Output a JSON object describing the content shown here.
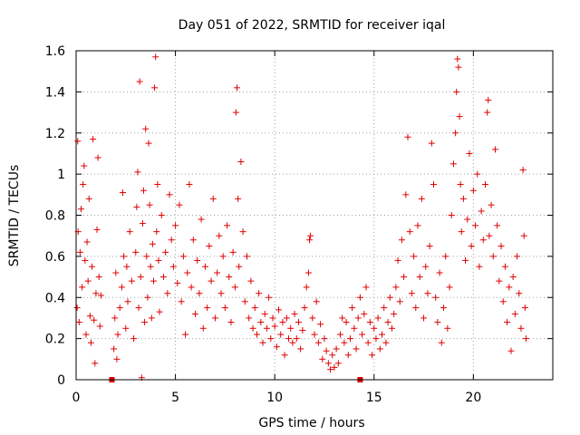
{
  "chart_data": {
    "type": "scatter",
    "title": "Day 051 of 2022, SRMTID for receiver iqal",
    "xlabel": "GPS time / hours",
    "ylabel": "SRMTID / TECUs",
    "xlim": [
      0,
      24
    ],
    "ylim": [
      0,
      1.6
    ],
    "xticks": [
      0,
      5,
      10,
      15,
      20
    ],
    "yticks": [
      0,
      0.2,
      0.4,
      0.6,
      0.8,
      1,
      1.2,
      1.4,
      1.6
    ],
    "xtick_labels": [
      "0",
      "5",
      "10",
      "15",
      "20"
    ],
    "ytick_labels": [
      "0",
      "0.2",
      "0.4",
      "0.6",
      "0.8",
      "1",
      "1.2",
      "1.4",
      "1.6"
    ],
    "grid": true,
    "marker": "+",
    "color": "#e00000",
    "square_markers": [
      {
        "x": 1.8,
        "y": 0
      },
      {
        "x": 14.3,
        "y": 0
      }
    ],
    "series": [
      {
        "name": "SRMTID",
        "points": [
          [
            0.05,
            0.35
          ],
          [
            0.08,
            1.16
          ],
          [
            0.1,
            0.72
          ],
          [
            0.15,
            0.28
          ],
          [
            0.2,
            0.62
          ],
          [
            0.25,
            0.83
          ],
          [
            0.3,
            0.45
          ],
          [
            0.35,
            0.95
          ],
          [
            0.4,
            1.04
          ],
          [
            0.45,
            0.58
          ],
          [
            0.5,
            0.22
          ],
          [
            0.55,
            0.67
          ],
          [
            0.6,
            0.48
          ],
          [
            0.65,
            0.88
          ],
          [
            0.7,
            0.31
          ],
          [
            0.75,
            0.18
          ],
          [
            0.8,
            0.55
          ],
          [
            0.85,
            1.17
          ],
          [
            0.9,
            0.29
          ],
          [
            0.95,
            0.08
          ],
          [
            1.0,
            0.42
          ],
          [
            1.05,
            0.73
          ],
          [
            1.1,
            1.08
          ],
          [
            1.15,
            0.5
          ],
          [
            1.2,
            0.26
          ],
          [
            1.25,
            0.41
          ],
          [
            1.9,
            0.15
          ],
          [
            1.95,
            0.3
          ],
          [
            2.0,
            0.52
          ],
          [
            2.05,
            0.1
          ],
          [
            2.1,
            0.22
          ],
          [
            2.2,
            0.35
          ],
          [
            2.3,
            0.45
          ],
          [
            2.35,
            0.91
          ],
          [
            2.4,
            0.6
          ],
          [
            2.5,
            0.25
          ],
          [
            2.55,
            0.55
          ],
          [
            2.6,
            0.38
          ],
          [
            2.7,
            0.72
          ],
          [
            2.8,
            0.48
          ],
          [
            2.9,
            0.2
          ],
          [
            3.0,
            0.62
          ],
          [
            3.05,
            0.84
          ],
          [
            3.1,
            1.01
          ],
          [
            3.15,
            0.35
          ],
          [
            3.2,
            1.45
          ],
          [
            3.25,
            0.5
          ],
          [
            3.3,
            0.01
          ],
          [
            3.35,
            0.76
          ],
          [
            3.4,
            0.92
          ],
          [
            3.45,
            0.28
          ],
          [
            3.5,
            1.22
          ],
          [
            3.55,
            0.6
          ],
          [
            3.6,
            0.4
          ],
          [
            3.65,
            1.15
          ],
          [
            3.7,
            0.85
          ],
          [
            3.75,
            0.55
          ],
          [
            3.8,
            0.3
          ],
          [
            3.85,
            0.66
          ],
          [
            3.9,
            0.48
          ],
          [
            3.95,
            1.42
          ],
          [
            4.0,
            1.57
          ],
          [
            4.05,
            0.72
          ],
          [
            4.1,
            0.95
          ],
          [
            4.15,
            0.58
          ],
          [
            4.2,
            0.33
          ],
          [
            4.3,
            0.8
          ],
          [
            4.4,
            0.5
          ],
          [
            4.5,
            0.62
          ],
          [
            4.6,
            0.42
          ],
          [
            4.7,
            0.9
          ],
          [
            4.8,
            0.68
          ],
          [
            4.9,
            0.55
          ],
          [
            5.0,
            0.75
          ],
          [
            5.1,
            0.47
          ],
          [
            5.2,
            0.85
          ],
          [
            5.3,
            0.38
          ],
          [
            5.4,
            0.6
          ],
          [
            5.5,
            0.22
          ],
          [
            5.6,
            0.52
          ],
          [
            5.7,
            0.95
          ],
          [
            5.8,
            0.45
          ],
          [
            5.9,
            0.68
          ],
          [
            6.0,
            0.32
          ],
          [
            6.1,
            0.58
          ],
          [
            6.2,
            0.42
          ],
          [
            6.3,
            0.78
          ],
          [
            6.4,
            0.25
          ],
          [
            6.5,
            0.55
          ],
          [
            6.6,
            0.35
          ],
          [
            6.7,
            0.65
          ],
          [
            6.8,
            0.48
          ],
          [
            6.9,
            0.88
          ],
          [
            7.0,
            0.3
          ],
          [
            7.1,
            0.52
          ],
          [
            7.2,
            0.7
          ],
          [
            7.3,
            0.42
          ],
          [
            7.4,
            0.6
          ],
          [
            7.5,
            0.35
          ],
          [
            7.6,
            0.75
          ],
          [
            7.7,
            0.5
          ],
          [
            7.8,
            0.28
          ],
          [
            7.9,
            0.62
          ],
          [
            8.0,
            0.45
          ],
          [
            8.05,
            1.3
          ],
          [
            8.1,
            1.42
          ],
          [
            8.15,
            0.88
          ],
          [
            8.2,
            0.55
          ],
          [
            8.3,
            1.06
          ],
          [
            8.4,
            0.72
          ],
          [
            8.5,
            0.38
          ],
          [
            8.6,
            0.6
          ],
          [
            8.7,
            0.3
          ],
          [
            8.8,
            0.48
          ],
          [
            8.9,
            0.25
          ],
          [
            9.0,
            0.35
          ],
          [
            9.1,
            0.22
          ],
          [
            9.2,
            0.42
          ],
          [
            9.3,
            0.28
          ],
          [
            9.4,
            0.18
          ],
          [
            9.5,
            0.32
          ],
          [
            9.6,
            0.25
          ],
          [
            9.7,
            0.4
          ],
          [
            9.8,
            0.2
          ],
          [
            9.9,
            0.3
          ],
          [
            10.0,
            0.26
          ],
          [
            10.1,
            0.16
          ],
          [
            10.2,
            0.34
          ],
          [
            10.3,
            0.22
          ],
          [
            10.4,
            0.28
          ],
          [
            10.5,
            0.12
          ],
          [
            10.6,
            0.3
          ],
          [
            10.7,
            0.2
          ],
          [
            10.8,
            0.25
          ],
          [
            10.9,
            0.18
          ],
          [
            11.0,
            0.32
          ],
          [
            11.1,
            0.2
          ],
          [
            11.2,
            0.28
          ],
          [
            11.3,
            0.15
          ],
          [
            11.4,
            0.24
          ],
          [
            11.5,
            0.35
          ],
          [
            11.6,
            0.45
          ],
          [
            11.7,
            0.52
          ],
          [
            11.75,
            0.68
          ],
          [
            11.8,
            0.7
          ],
          [
            11.9,
            0.3
          ],
          [
            12.0,
            0.22
          ],
          [
            12.1,
            0.38
          ],
          [
            12.2,
            0.18
          ],
          [
            12.3,
            0.27
          ],
          [
            12.4,
            0.1
          ],
          [
            12.5,
            0.2
          ],
          [
            12.6,
            0.14
          ],
          [
            12.7,
            0.08
          ],
          [
            12.8,
            0.05
          ],
          [
            12.9,
            0.12
          ],
          [
            13.0,
            0.06
          ],
          [
            13.1,
            0.15
          ],
          [
            13.2,
            0.08
          ],
          [
            13.3,
            0.22
          ],
          [
            13.4,
            0.3
          ],
          [
            13.5,
            0.18
          ],
          [
            13.6,
            0.28
          ],
          [
            13.7,
            0.12
          ],
          [
            13.8,
            0.2
          ],
          [
            13.9,
            0.35
          ],
          [
            14.0,
            0.25
          ],
          [
            14.1,
            0.15
          ],
          [
            14.2,
            0.3
          ],
          [
            14.3,
            0.4
          ],
          [
            14.4,
            0.22
          ],
          [
            14.5,
            0.32
          ],
          [
            14.6,
            0.45
          ],
          [
            14.7,
            0.18
          ],
          [
            14.8,
            0.28
          ],
          [
            14.9,
            0.12
          ],
          [
            15.0,
            0.25
          ],
          [
            15.1,
            0.2
          ],
          [
            15.2,
            0.3
          ],
          [
            15.3,
            0.15
          ],
          [
            15.4,
            0.22
          ],
          [
            15.5,
            0.35
          ],
          [
            15.6,
            0.18
          ],
          [
            15.7,
            0.28
          ],
          [
            15.8,
            0.4
          ],
          [
            15.9,
            0.25
          ],
          [
            16.0,
            0.32
          ],
          [
            16.1,
            0.45
          ],
          [
            16.2,
            0.58
          ],
          [
            16.3,
            0.38
          ],
          [
            16.4,
            0.68
          ],
          [
            16.5,
            0.5
          ],
          [
            16.6,
            0.9
          ],
          [
            16.7,
            1.18
          ],
          [
            16.8,
            0.72
          ],
          [
            16.9,
            0.42
          ],
          [
            17.0,
            0.6
          ],
          [
            17.1,
            0.35
          ],
          [
            17.2,
            0.75
          ],
          [
            17.3,
            0.5
          ],
          [
            17.4,
            0.88
          ],
          [
            17.5,
            0.3
          ],
          [
            17.6,
            0.55
          ],
          [
            17.7,
            0.42
          ],
          [
            17.8,
            0.65
          ],
          [
            17.9,
            1.15
          ],
          [
            18.0,
            0.95
          ],
          [
            18.1,
            0.4
          ],
          [
            18.2,
            0.28
          ],
          [
            18.3,
            0.52
          ],
          [
            18.4,
            0.18
          ],
          [
            18.5,
            0.35
          ],
          [
            18.6,
            0.6
          ],
          [
            18.7,
            0.25
          ],
          [
            18.8,
            0.45
          ],
          [
            18.9,
            0.8
          ],
          [
            19.0,
            1.05
          ],
          [
            19.1,
            1.2
          ],
          [
            19.15,
            1.4
          ],
          [
            19.2,
            1.56
          ],
          [
            19.25,
            1.52
          ],
          [
            19.3,
            1.28
          ],
          [
            19.35,
            0.95
          ],
          [
            19.4,
            0.72
          ],
          [
            19.5,
            0.88
          ],
          [
            19.6,
            0.58
          ],
          [
            19.7,
            0.78
          ],
          [
            19.8,
            1.1
          ],
          [
            19.9,
            0.65
          ],
          [
            20.0,
            0.92
          ],
          [
            20.1,
            0.75
          ],
          [
            20.2,
            1.0
          ],
          [
            20.3,
            0.55
          ],
          [
            20.4,
            0.82
          ],
          [
            20.5,
            0.68
          ],
          [
            20.6,
            0.95
          ],
          [
            20.7,
            1.3
          ],
          [
            20.75,
            1.36
          ],
          [
            20.8,
            0.7
          ],
          [
            20.9,
            0.85
          ],
          [
            21.0,
            0.6
          ],
          [
            21.1,
            1.12
          ],
          [
            21.2,
            0.75
          ],
          [
            21.3,
            0.48
          ],
          [
            21.4,
            0.65
          ],
          [
            21.5,
            0.38
          ],
          [
            21.6,
            0.55
          ],
          [
            21.7,
            0.28
          ],
          [
            21.8,
            0.45
          ],
          [
            21.9,
            0.14
          ],
          [
            22.0,
            0.5
          ],
          [
            22.1,
            0.32
          ],
          [
            22.2,
            0.6
          ],
          [
            22.3,
            0.42
          ],
          [
            22.4,
            0.25
          ],
          [
            22.5,
            1.02
          ],
          [
            22.55,
            0.7
          ],
          [
            22.6,
            0.35
          ],
          [
            22.65,
            0.2
          ]
        ]
      }
    ]
  }
}
